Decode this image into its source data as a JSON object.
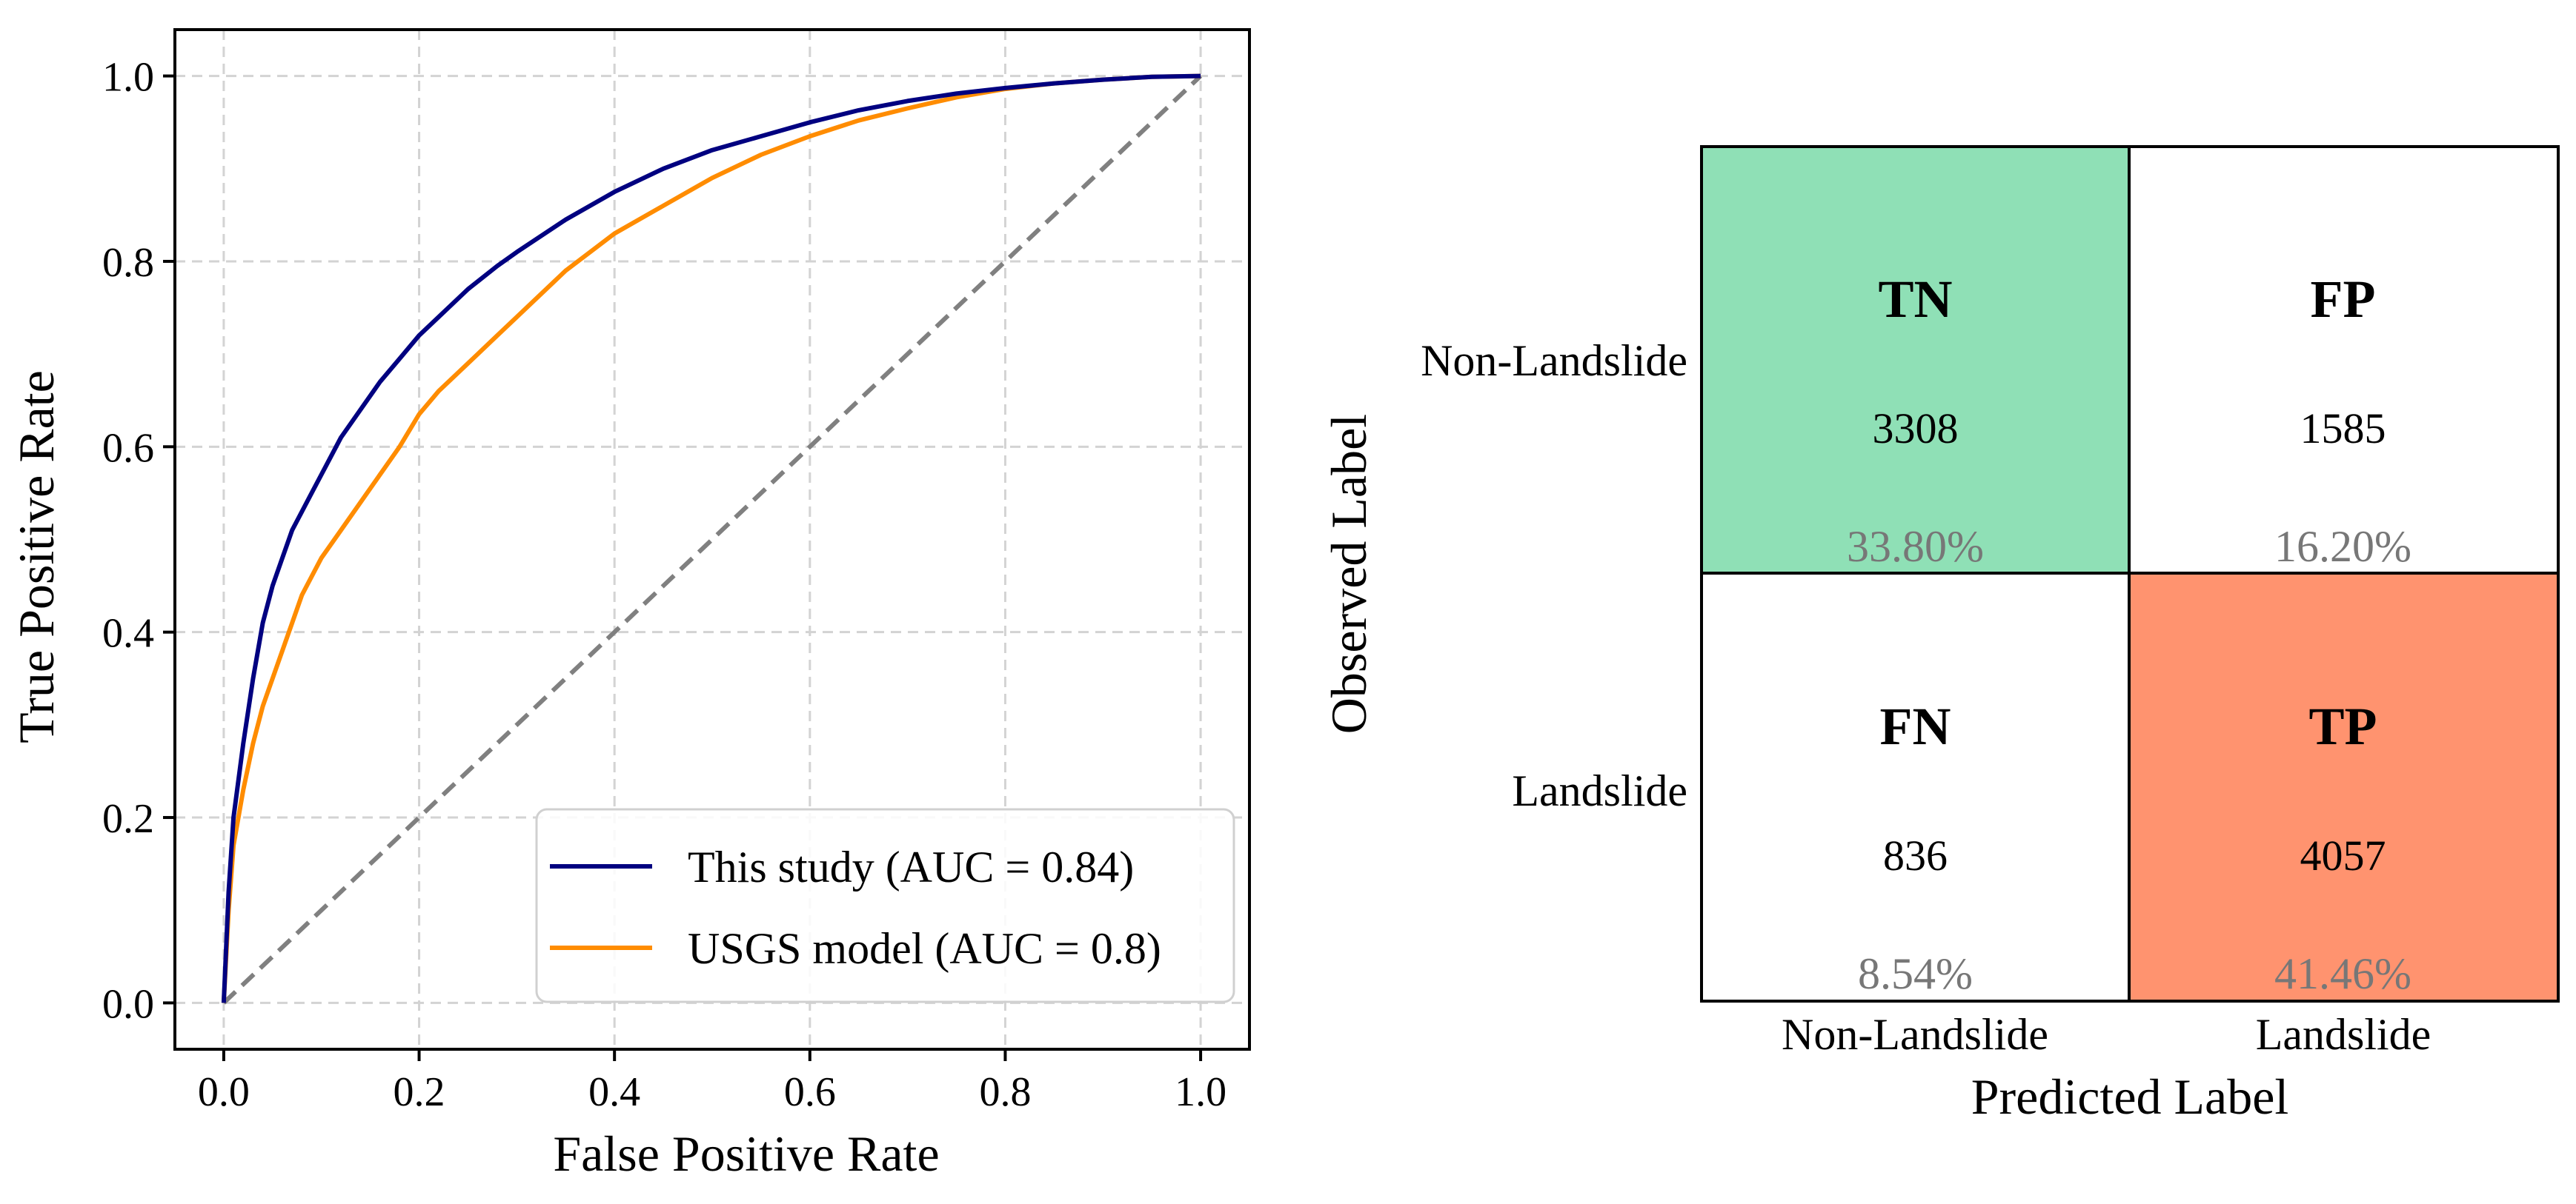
{
  "chart_data": [
    {
      "type": "line",
      "title": "",
      "xlabel": "False Positive Rate",
      "ylabel": "True Positive Rate",
      "xlim": [
        -0.05,
        1.05
      ],
      "ylim": [
        -0.05,
        1.05
      ],
      "xticks": [
        "0.0",
        "0.2",
        "0.4",
        "0.6",
        "0.8",
        "1.0"
      ],
      "yticks": [
        "0.0",
        "0.2",
        "0.4",
        "0.6",
        "0.8",
        "1.0"
      ],
      "grid": true,
      "legend": "lower right",
      "series": [
        {
          "name": "This study (AUC = 0.84)",
          "color": "#000080",
          "x": [
            0.0,
            0.005,
            0.01,
            0.02,
            0.03,
            0.04,
            0.05,
            0.06,
            0.07,
            0.08,
            0.09,
            0.1,
            0.12,
            0.14,
            0.16,
            0.18,
            0.2,
            0.22,
            0.25,
            0.28,
            0.3,
            0.35,
            0.4,
            0.45,
            0.5,
            0.55,
            0.6,
            0.65,
            0.7,
            0.75,
            0.8,
            0.85,
            0.9,
            0.95,
            1.0
          ],
          "y": [
            0.0,
            0.12,
            0.2,
            0.28,
            0.35,
            0.41,
            0.45,
            0.48,
            0.51,
            0.53,
            0.55,
            0.57,
            0.61,
            0.64,
            0.67,
            0.695,
            0.72,
            0.74,
            0.77,
            0.795,
            0.81,
            0.845,
            0.875,
            0.9,
            0.92,
            0.935,
            0.95,
            0.963,
            0.973,
            0.981,
            0.987,
            0.992,
            0.996,
            0.999,
            1.0
          ]
        },
        {
          "name": "USGS model (AUC = 0.8)",
          "color": "#FF8C00",
          "x": [
            0.0,
            0.005,
            0.01,
            0.02,
            0.03,
            0.04,
            0.05,
            0.06,
            0.07,
            0.08,
            0.09,
            0.1,
            0.12,
            0.14,
            0.16,
            0.18,
            0.2,
            0.22,
            0.25,
            0.28,
            0.3,
            0.35,
            0.4,
            0.45,
            0.5,
            0.55,
            0.6,
            0.65,
            0.7,
            0.75,
            0.8,
            0.85,
            0.9,
            0.95,
            1.0
          ],
          "y": [
            0.0,
            0.1,
            0.17,
            0.23,
            0.28,
            0.32,
            0.35,
            0.38,
            0.41,
            0.44,
            0.46,
            0.48,
            0.51,
            0.54,
            0.57,
            0.6,
            0.635,
            0.66,
            0.69,
            0.72,
            0.74,
            0.79,
            0.83,
            0.86,
            0.89,
            0.915,
            0.935,
            0.952,
            0.965,
            0.977,
            0.986,
            0.992,
            0.996,
            0.999,
            1.0
          ]
        },
        {
          "name": "",
          "color": "#808080",
          "dashed": true,
          "x": [
            0.0,
            1.0
          ],
          "y": [
            0.0,
            1.0
          ]
        }
      ]
    },
    {
      "type": "heatmap",
      "title": "",
      "xlabel": "Predicted Label",
      "ylabel": "Observed Label",
      "x_categories": [
        "Non-Landslide",
        "Landslide"
      ],
      "y_categories": [
        "Non-Landslide",
        "Landslide"
      ],
      "cells": [
        {
          "row": 0,
          "col": 0,
          "label": "TN",
          "count": "3308",
          "percent": "33.80%",
          "color": "#8FE0B6"
        },
        {
          "row": 0,
          "col": 1,
          "label": "FP",
          "count": "1585",
          "percent": "16.20%",
          "color": "#FFFFFF"
        },
        {
          "row": 1,
          "col": 0,
          "label": "FN",
          "count": "836",
          "percent": "8.54%",
          "color": "#FFFFFF"
        },
        {
          "row": 1,
          "col": 1,
          "label": "TP",
          "count": "4057",
          "percent": "41.46%",
          "color": "#FF936F"
        }
      ]
    }
  ]
}
